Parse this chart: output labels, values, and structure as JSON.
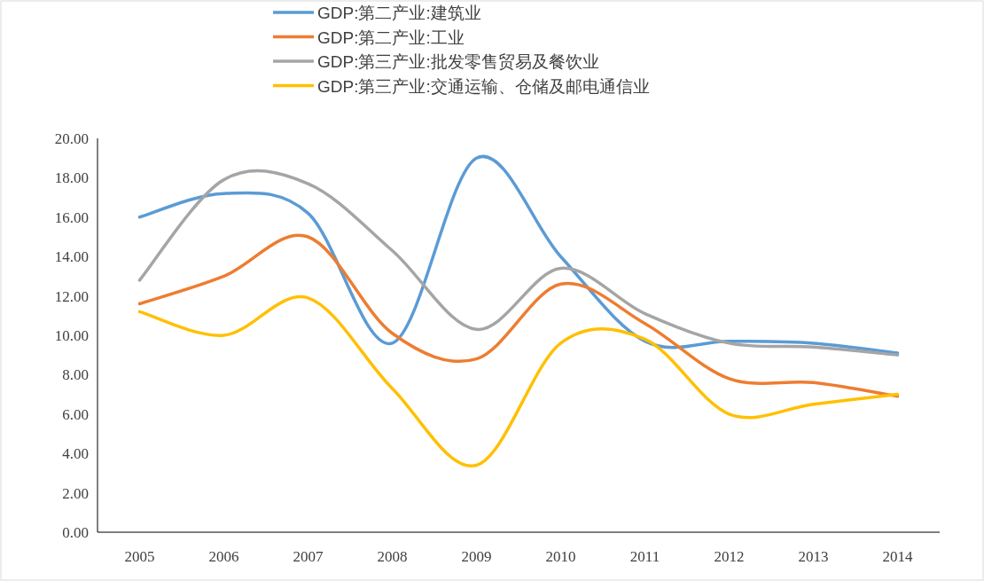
{
  "chart_data": {
    "type": "line",
    "categories": [
      "2005",
      "2006",
      "2007",
      "2008",
      "2009",
      "2010",
      "2011",
      "2012",
      "2013",
      "2014"
    ],
    "series": [
      {
        "name": "GDP:第二产业:建筑业",
        "color": "#5b9bd5",
        "values": [
          16.0,
          17.2,
          16.2,
          9.6,
          19.0,
          14.0,
          9.7,
          9.7,
          9.6,
          9.1
        ]
      },
      {
        "name": "GDP:第二产业:工业",
        "color": "#ed7d31",
        "values": [
          11.6,
          13.0,
          15.0,
          10.1,
          8.8,
          12.6,
          10.6,
          7.8,
          7.6,
          6.9
        ]
      },
      {
        "name": "GDP:第三产业:批发零售贸易及餐饮业",
        "color": "#a5a5a5",
        "values": [
          12.8,
          17.9,
          17.7,
          14.3,
          10.3,
          13.4,
          11.1,
          9.6,
          9.4,
          9.0
        ]
      },
      {
        "name": "GDP:第三产业:交通运输、仓储及邮电通信业",
        "color": "#ffc000",
        "values": [
          11.2,
          10.0,
          11.9,
          7.3,
          3.4,
          9.6,
          9.8,
          6.0,
          6.5,
          7.0
        ]
      }
    ],
    "ylim": [
      0,
      20
    ],
    "yticks": [
      {
        "value": 0,
        "label": "0.00"
      },
      {
        "value": 2,
        "label": "2.00"
      },
      {
        "value": 4,
        "label": "4.00"
      },
      {
        "value": 6,
        "label": "6.00"
      },
      {
        "value": 8,
        "label": "8.00"
      },
      {
        "value": 10,
        "label": "10.00"
      },
      {
        "value": 12,
        "label": "12.00"
      },
      {
        "value": 14,
        "label": "14.00"
      },
      {
        "value": 16,
        "label": "16.00"
      },
      {
        "value": 18,
        "label": "18.00"
      },
      {
        "value": 20,
        "label": "20.00"
      }
    ],
    "legend": "top",
    "marker": "none",
    "line_style": "solid",
    "grid": false
  }
}
